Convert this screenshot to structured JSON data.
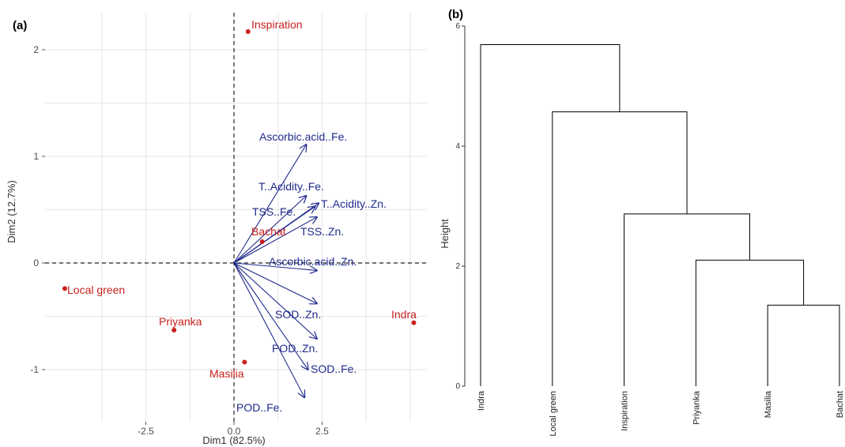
{
  "colors": {
    "individual": "#c8201e",
    "variable": "#1f2a8c",
    "grid": "#e6e6e6",
    "reference_line": "#222222",
    "dendrogram": "#000000"
  },
  "chart_data": [
    {
      "panel": "(a)",
      "type": "scatter",
      "subtype": "pca-biplot",
      "xlabel": "Dim1 (82.5%)",
      "ylabel": "Dim2 (12.7%)",
      "xlim": [
        -4.4,
        5.4
      ],
      "ylim": [
        -1.42,
        2.32
      ],
      "xticks": [
        -2.5,
        0.0,
        2.5
      ],
      "xtick_labels": [
        "-2.5",
        "0.0",
        "2.5"
      ],
      "yticks": [
        -1,
        0,
        1,
        2
      ],
      "ytick_labels": [
        "-1",
        "0",
        "1",
        "2"
      ],
      "grid": true,
      "reference_lines": {
        "x": 0,
        "y": 0,
        "style": "dashed"
      },
      "individuals": [
        {
          "name": "Inspiration",
          "x": 0.4,
          "y": 2.17
        },
        {
          "name": "Local green",
          "x": -4.8,
          "y": -0.24
        },
        {
          "name": "Priyanka",
          "x": -1.7,
          "y": -0.63
        },
        {
          "name": "Masilia",
          "x": 0.3,
          "y": -0.93
        },
        {
          "name": "Indra",
          "x": 5.1,
          "y": -0.56
        },
        {
          "name": "Bachat",
          "x": 0.8,
          "y": 0.2
        }
      ],
      "variables": [
        {
          "name": "Ascorbic.acid..Fe.",
          "x": 2.05,
          "y": 1.11
        },
        {
          "name": "T..Acidity..Fe.",
          "x": 2.05,
          "y": 0.63
        },
        {
          "name": "TSS..Fe.",
          "x": 2.3,
          "y": 0.53
        },
        {
          "name": "T..Acidity..Zn.",
          "x": 2.4,
          "y": 0.56
        },
        {
          "name": "TSS..Zn.",
          "x": 2.35,
          "y": 0.43
        },
        {
          "name": "Ascorbic.acid..Zn.",
          "x": 2.35,
          "y": -0.07
        },
        {
          "name": "SOD..Zn.",
          "x": 2.35,
          "y": -0.38
        },
        {
          "name": "POD..Zn.",
          "x": 2.35,
          "y": -0.71
        },
        {
          "name": "SOD..Fe.",
          "x": 2.1,
          "y": -1.0
        },
        {
          "name": "POD..Fe.",
          "x": 2.0,
          "y": -1.26
        }
      ]
    },
    {
      "panel": "(b)",
      "type": "dendrogram",
      "ylabel": "Height",
      "ylim": [
        0,
        6
      ],
      "yticks": [
        0,
        2,
        4,
        6
      ],
      "ytick_labels": [
        "0",
        "2",
        "4",
        "6"
      ],
      "leaves": [
        "Indra",
        "Local green",
        "Inspiration",
        "Priyanka",
        "Masilia",
        "Bachat"
      ],
      "merges": [
        {
          "left": "Masilia",
          "right": "Bachat",
          "height": 1.35
        },
        {
          "left": "Priyanka",
          "right": "Masilia+Bachat",
          "height": 2.1
        },
        {
          "left": "Inspiration",
          "right": "Priyanka+Masilia+Bachat",
          "height": 2.87
        },
        {
          "left": "Local green",
          "right": "Inspiration+Priyanka+Masilia+Bachat",
          "height": 4.57
        },
        {
          "left": "Indra",
          "right": "Local green+Inspiration+Priyanka+Masilia+Bachat",
          "height": 5.69
        }
      ]
    }
  ]
}
